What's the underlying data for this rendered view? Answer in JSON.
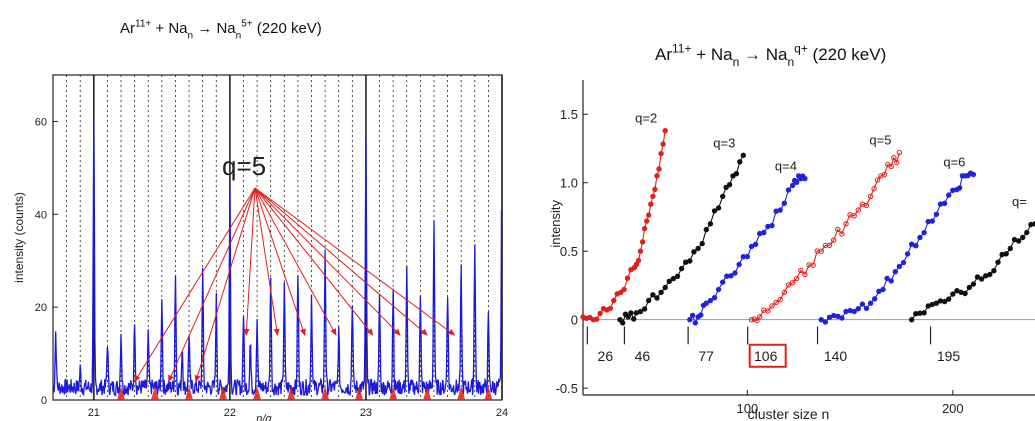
{
  "chart_data": [
    {
      "type": "line",
      "title": {
        "base1": "Ar",
        "sup1": "11+",
        "plus": "+",
        "base2": "Na",
        "sub2": "n",
        "arrow": "→",
        "base3": "Na",
        "sub3": "n",
        "sup3": "5+",
        "energy": "(220 keV)"
      },
      "xlabel": "n/q",
      "ylabel": "intensity (counts)",
      "xlim": [
        20.7,
        24.0
      ],
      "ylim": [
        0,
        70
      ],
      "x_ticks": [
        "21",
        "22",
        "23",
        "24"
      ],
      "y_ticks": [
        "0",
        "20",
        "40",
        "60"
      ],
      "annotation": {
        "label": "q=5",
        "color": "#e0201a"
      },
      "series_color": "#1a1ad8",
      "highlight_color": "#e0201a",
      "peaks": [
        {
          "x": 20.72,
          "y": 12
        },
        {
          "x": 20.9,
          "y": 4
        },
        {
          "x": 21.0,
          "y": 56
        },
        {
          "x": 21.1,
          "y": 10
        },
        {
          "x": 21.2,
          "y": 12
        },
        {
          "x": 21.3,
          "y": 15
        },
        {
          "x": 21.4,
          "y": 11
        },
        {
          "x": 21.5,
          "y": 20
        },
        {
          "x": 21.6,
          "y": 25
        },
        {
          "x": 21.65,
          "y": 9
        },
        {
          "x": 21.7,
          "y": 12
        },
        {
          "x": 21.8,
          "y": 25
        },
        {
          "x": 21.9,
          "y": 19
        },
        {
          "x": 22.0,
          "y": 43
        },
        {
          "x": 22.1,
          "y": 16
        },
        {
          "x": 22.15,
          "y": 10
        },
        {
          "x": 22.2,
          "y": 15
        },
        {
          "x": 22.3,
          "y": 25
        },
        {
          "x": 22.4,
          "y": 23
        },
        {
          "x": 22.5,
          "y": 25
        },
        {
          "x": 22.6,
          "y": 20
        },
        {
          "x": 22.7,
          "y": 30
        },
        {
          "x": 22.8,
          "y": 12
        },
        {
          "x": 22.9,
          "y": 19
        },
        {
          "x": 23.0,
          "y": 53
        },
        {
          "x": 23.1,
          "y": 20
        },
        {
          "x": 23.2,
          "y": 22
        },
        {
          "x": 23.3,
          "y": 25
        },
        {
          "x": 23.4,
          "y": 19
        },
        {
          "x": 23.5,
          "y": 36
        },
        {
          "x": 23.6,
          "y": 21
        },
        {
          "x": 23.7,
          "y": 25
        },
        {
          "x": 23.8,
          "y": 32
        },
        {
          "x": 23.9,
          "y": 15
        },
        {
          "x": 24.0,
          "y": 61
        }
      ]
    },
    {
      "type": "line",
      "title": {
        "base1": "Ar",
        "sup1": "11+",
        "plus": "+",
        "base2": "Na",
        "sub2": "n",
        "arrow": "→",
        "base3": "Na",
        "sub3": "n",
        "sup3": "q+",
        "energy": "(220 keV)"
      },
      "xlabel": "cluster size n",
      "ylabel": "intensity",
      "xlim": [
        20,
        240
      ],
      "ylim": [
        -0.55,
        1.75
      ],
      "x_ticks": [
        "100",
        "200"
      ],
      "y_ticks": [
        "-0.5",
        "0",
        "0.5",
        "1.0",
        "1.5"
      ],
      "baseline_color": "#55cc55",
      "threshold_labels": [
        "26",
        "46",
        "77",
        "106",
        "140",
        "195"
      ],
      "threshold_x": [
        26,
        46,
        77,
        106,
        140,
        195
      ],
      "highlighted_threshold": "106",
      "series": [
        {
          "name": "q=2",
          "color": "#e0201a",
          "x_range": [
            20,
            60
          ],
          "points": [
            [
              20,
              0.02
            ],
            [
              25,
              0.0
            ],
            [
              30,
              0.08
            ],
            [
              35,
              0.14
            ],
            [
              40,
              0.22
            ],
            [
              45,
              0.38
            ],
            [
              48,
              0.5
            ],
            [
              51,
              0.72
            ],
            [
              54,
              0.9
            ],
            [
              57,
              1.1
            ],
            [
              60,
              1.38
            ]
          ]
        },
        {
          "name": "q=3",
          "color": "#111111",
          "x_range": [
            38,
            98
          ],
          "points": [
            [
              38,
              0.0
            ],
            [
              42,
              0.02
            ],
            [
              46,
              0.05
            ],
            [
              52,
              0.14
            ],
            [
              58,
              0.2
            ],
            [
              64,
              0.3
            ],
            [
              70,
              0.42
            ],
            [
              76,
              0.52
            ],
            [
              82,
              0.7
            ],
            [
              88,
              0.9
            ],
            [
              93,
              1.05
            ],
            [
              98,
              1.2
            ]
          ]
        },
        {
          "name": "q=4",
          "color": "#2222dd",
          "x_range": [
            72,
            128
          ],
          "points": [
            [
              72,
              0.0
            ],
            [
              76,
              0.02
            ],
            [
              80,
              0.12
            ],
            [
              86,
              0.22
            ],
            [
              92,
              0.32
            ],
            [
              98,
              0.46
            ],
            [
              104,
              0.55
            ],
            [
              110,
              0.68
            ],
            [
              116,
              0.8
            ],
            [
              122,
              0.98
            ],
            [
              125,
              1.05
            ],
            [
              128,
              1.03
            ]
          ]
        },
        {
          "name": "q=5",
          "color": "#e0201a",
          "x_range": [
            102,
            174
          ],
          "points": [
            [
              102,
              0.0
            ],
            [
              106,
              0.02
            ],
            [
              112,
              0.1
            ],
            [
              118,
              0.2
            ],
            [
              124,
              0.3
            ],
            [
              130,
              0.4
            ],
            [
              136,
              0.5
            ],
            [
              142,
              0.58
            ],
            [
              148,
              0.7
            ],
            [
              154,
              0.8
            ],
            [
              160,
              0.9
            ],
            [
              165,
              1.05
            ],
            [
              170,
              1.12
            ],
            [
              174,
              1.22
            ]
          ]
        },
        {
          "name": "q=6",
          "color": "#2222dd",
          "x_range": [
            136,
            210
          ],
          "points": [
            [
              136,
              0.0
            ],
            [
              142,
              0.03
            ],
            [
              148,
              0.06
            ],
            [
              154,
              0.08
            ],
            [
              160,
              0.12
            ],
            [
              166,
              0.22
            ],
            [
              172,
              0.35
            ],
            [
              178,
              0.48
            ],
            [
              184,
              0.6
            ],
            [
              190,
              0.72
            ],
            [
              196,
              0.85
            ],
            [
              202,
              0.95
            ],
            [
              206,
              1.05
            ],
            [
              210,
              1.06
            ]
          ]
        },
        {
          "name": "q=",
          "color": "#111111",
          "x_range": [
            180,
            240
          ],
          "points": [
            [
              180,
              0.0
            ],
            [
              186,
              0.05
            ],
            [
              192,
              0.12
            ],
            [
              198,
              0.15
            ],
            [
              204,
              0.2
            ],
            [
              210,
              0.26
            ],
            [
              216,
              0.32
            ],
            [
              222,
              0.42
            ],
            [
              228,
              0.52
            ],
            [
              234,
              0.6
            ],
            [
              240,
              0.7
            ]
          ]
        }
      ]
    }
  ]
}
